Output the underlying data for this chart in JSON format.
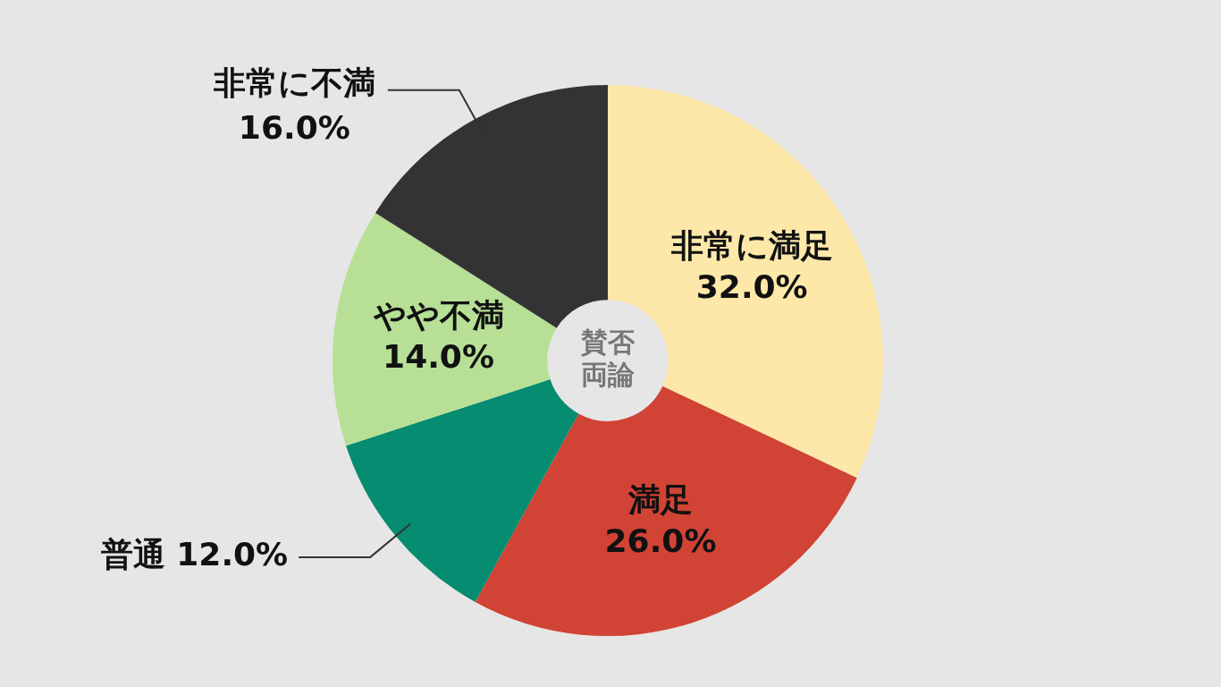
{
  "chart_data": {
    "type": "donut",
    "categories": [
      "非常に満足",
      "満足",
      "普通",
      "やや不満",
      "非常に不満"
    ],
    "values": [
      32.0,
      26.0,
      12.0,
      14.0,
      16.0
    ],
    "value_labels": [
      "32.0%",
      "26.0%",
      "12.0%",
      "14.0%",
      "16.0%"
    ],
    "colors": [
      "#fde8aa",
      "#d04335",
      "#068c70",
      "#b7e096",
      "#333333"
    ],
    "annotations": [
      "賛否両論"
    ],
    "legend": false
  }
}
